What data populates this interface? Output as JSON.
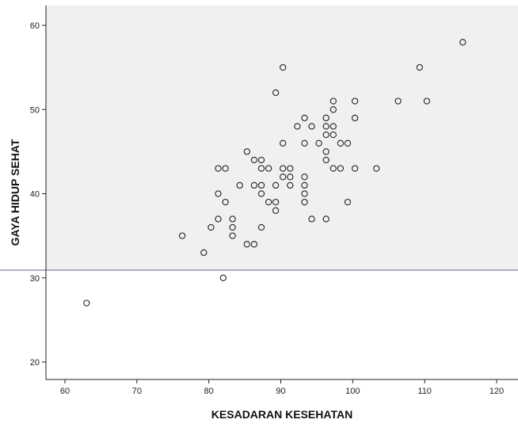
{
  "chart_data": {
    "type": "scatter",
    "xlabel": "KESADARAN KESEHATAN",
    "ylabel": "GAYA HIDUP SEHAT",
    "xlim": [
      56,
      122
    ],
    "ylim": [
      18,
      62
    ],
    "xticks": [
      60,
      70,
      80,
      90,
      100,
      110,
      120
    ],
    "yticks": [
      20,
      30,
      40,
      50,
      60
    ],
    "grid": false,
    "axis_break": {
      "y": 31,
      "note": "upper region shaded, break line at y≈31"
    },
    "colors": {
      "upper_panel": "#f0f0f0",
      "lower_panel": "#ffffff",
      "break_line": "#5a6a7e",
      "marker": "#222222"
    },
    "points": [
      [
        63,
        27
      ],
      [
        76.3,
        35
      ],
      [
        79.3,
        33
      ],
      [
        80.3,
        36
      ],
      [
        81.3,
        37
      ],
      [
        81.3,
        40
      ],
      [
        81.3,
        43
      ],
      [
        82,
        30
      ],
      [
        82.3,
        43
      ],
      [
        82.3,
        39
      ],
      [
        83.3,
        37
      ],
      [
        83.3,
        36
      ],
      [
        83.3,
        35
      ],
      [
        84.3,
        41
      ],
      [
        85.3,
        45
      ],
      [
        85.3,
        34
      ],
      [
        86.3,
        34
      ],
      [
        86.3,
        44
      ],
      [
        86.3,
        41
      ],
      [
        87.3,
        44
      ],
      [
        87.3,
        43
      ],
      [
        87.3,
        41
      ],
      [
        87.3,
        40
      ],
      [
        87.3,
        36
      ],
      [
        88.3,
        43
      ],
      [
        88.3,
        39
      ],
      [
        89.3,
        52
      ],
      [
        89.3,
        41
      ],
      [
        89.3,
        39
      ],
      [
        89.3,
        38
      ],
      [
        90.3,
        55
      ],
      [
        90.3,
        46
      ],
      [
        90.3,
        43
      ],
      [
        90.3,
        42
      ],
      [
        91.3,
        43
      ],
      [
        91.3,
        42
      ],
      [
        91.3,
        41
      ],
      [
        92.3,
        48
      ],
      [
        93.3,
        49
      ],
      [
        93.3,
        46
      ],
      [
        93.3,
        42
      ],
      [
        93.3,
        41
      ],
      [
        93.3,
        40
      ],
      [
        93.3,
        39
      ],
      [
        94.3,
        48
      ],
      [
        94.3,
        37
      ],
      [
        95.3,
        46
      ],
      [
        96.3,
        49
      ],
      [
        96.3,
        48
      ],
      [
        96.3,
        47
      ],
      [
        96.3,
        45
      ],
      [
        96.3,
        44
      ],
      [
        96.3,
        37
      ],
      [
        97.3,
        51
      ],
      [
        97.3,
        50
      ],
      [
        97.3,
        48
      ],
      [
        97.3,
        47
      ],
      [
        97.3,
        43
      ],
      [
        98.3,
        46
      ],
      [
        98.3,
        43
      ],
      [
        99.3,
        46
      ],
      [
        99.3,
        39
      ],
      [
        100.3,
        51
      ],
      [
        100.3,
        49
      ],
      [
        100.3,
        43
      ],
      [
        103.3,
        43
      ],
      [
        106.3,
        51
      ],
      [
        109.3,
        55
      ],
      [
        110.3,
        51
      ],
      [
        115.3,
        58
      ]
    ]
  }
}
